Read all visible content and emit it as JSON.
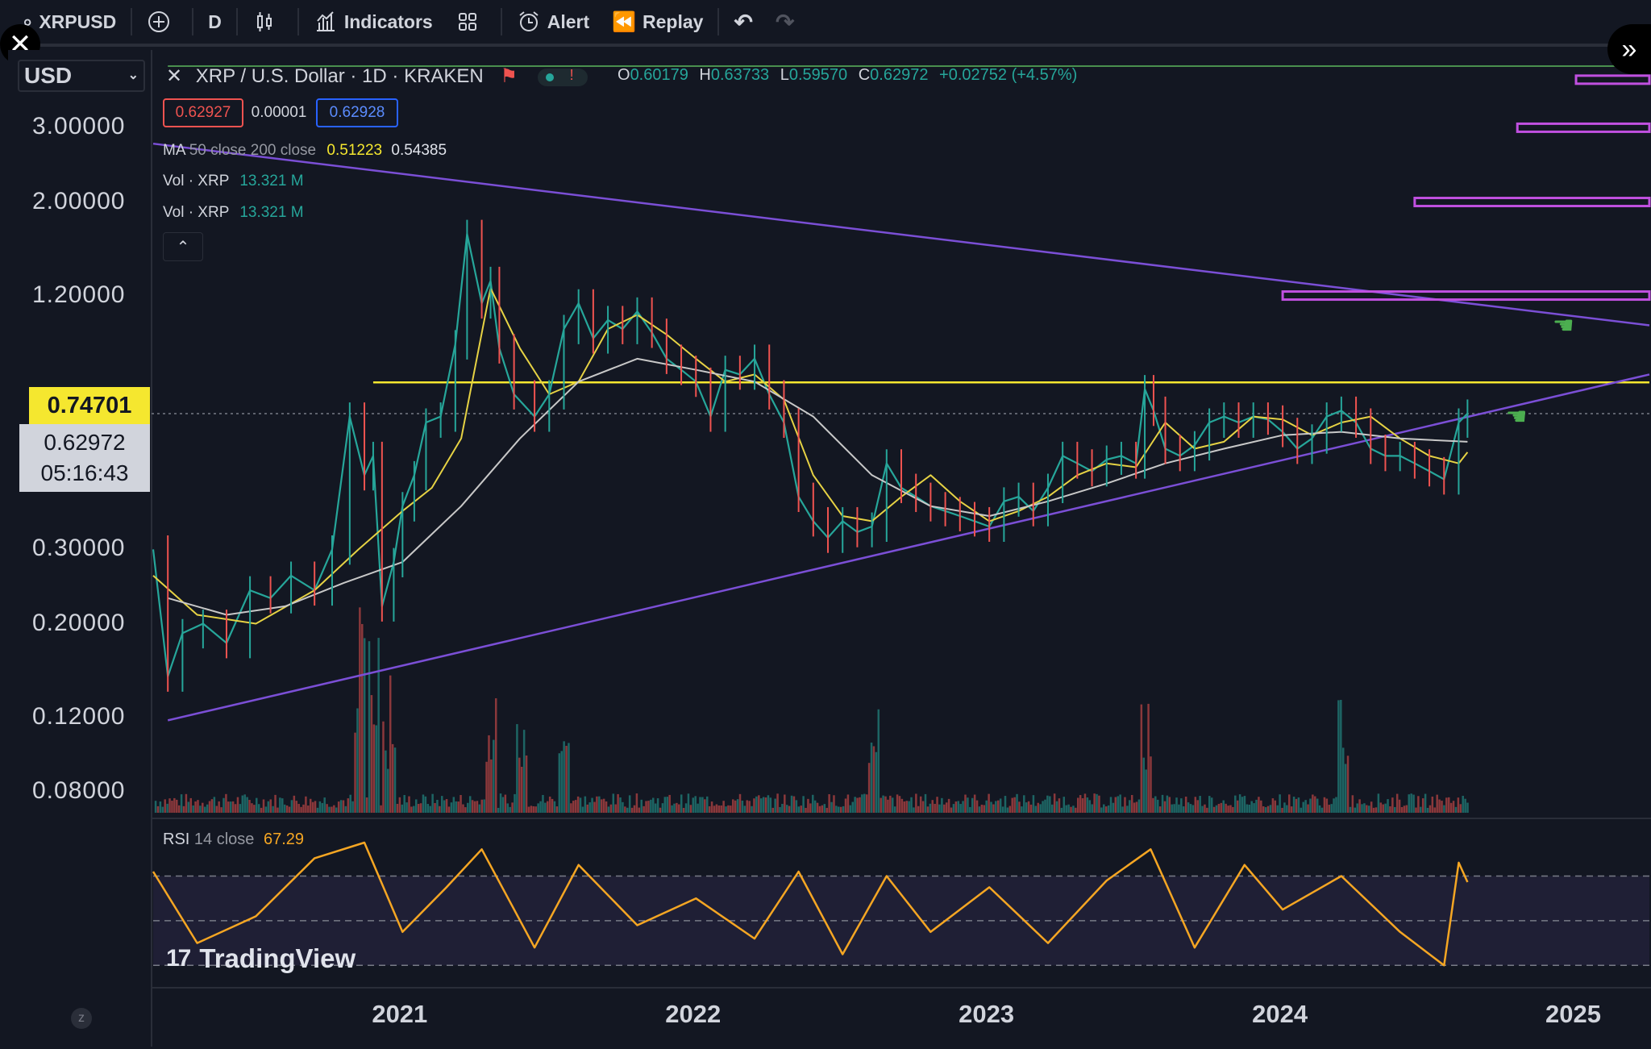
{
  "toolbar": {
    "symbol": "XRPUSD",
    "interval": "D",
    "indicators_label": "Indicators",
    "alert_label": "Alert",
    "replay_label": "Replay"
  },
  "header": {
    "currency": "USD",
    "title": "XRP / U.S. Dollar · 1D · KRAKEN",
    "open_label": "O",
    "open": "0.60179",
    "high_label": "H",
    "high": "0.63733",
    "low_label": "L",
    "low": "0.59570",
    "close_label": "C",
    "close": "0.62972",
    "change": "+0.02752 (+4.57%)",
    "bid": "0.62927",
    "spread": "0.00001",
    "ask": "0.62928"
  },
  "indicators": {
    "ma_label": "MA",
    "ma_params": "50 close 200 close",
    "ma50": "0.51223",
    "ma200": "0.54385",
    "vol1_label": "Vol",
    "vol1_sym": "· XRP",
    "vol1": "13.321 M",
    "vol2_label": "Vol",
    "vol2_sym": "· XRP",
    "vol2": "13.321 M",
    "rsi_label": "RSI",
    "rsi_params": "14 close",
    "rsi_value": "67.29"
  },
  "price_labels": {
    "level": "0.74701",
    "current": "0.62972",
    "countdown": "05:16:43"
  },
  "watermark": "TradingView",
  "colors": {
    "background": "#131722",
    "ma50": "#e6d244",
    "ma200": "#c8c8c8",
    "trendline": "#7b4fd6",
    "level_line": "#f5e72f",
    "rsi": "#f5a623",
    "up": "#26a69a",
    "down": "#ef5350"
  },
  "chart_data": {
    "type": "line",
    "title": "XRP / U.S. Dollar · 1D · KRAKEN",
    "y_scale": "log",
    "y_ticks": [
      "3.00000",
      "2.00000",
      "1.20000",
      "0.30000",
      "0.20000",
      "0.12000",
      "0.08000"
    ],
    "x_ticks": [
      "2021",
      "2022",
      "2023",
      "2024",
      "2025"
    ],
    "ylim": [
      0.07,
      4.2
    ],
    "xlim": [
      2020.15,
      2025.25
    ],
    "horizontal_level": 0.74701,
    "series": [
      {
        "name": "XRP close",
        "x": [
          2020.15,
          2020.2,
          2020.25,
          2020.32,
          2020.4,
          2020.48,
          2020.55,
          2020.62,
          2020.7,
          2020.76,
          2020.82,
          2020.87,
          2020.9,
          2020.93,
          2020.97,
          2021.0,
          2021.04,
          2021.08,
          2021.13,
          2021.18,
          2021.22,
          2021.27,
          2021.3,
          2021.33,
          2021.38,
          2021.45,
          2021.5,
          2021.55,
          2021.6,
          2021.65,
          2021.7,
          2021.75,
          2021.8,
          2021.85,
          2021.9,
          2021.95,
          2022.0,
          2022.05,
          2022.1,
          2022.15,
          2022.2,
          2022.25,
          2022.3,
          2022.35,
          2022.4,
          2022.45,
          2022.5,
          2022.55,
          2022.6,
          2022.65,
          2022.7,
          2022.75,
          2022.8,
          2022.85,
          2022.9,
          2022.95,
          2023.0,
          2023.05,
          2023.1,
          2023.15,
          2023.2,
          2023.25,
          2023.3,
          2023.35,
          2023.4,
          2023.45,
          2023.5,
          2023.53,
          2023.56,
          2023.6,
          2023.65,
          2023.7,
          2023.75,
          2023.8,
          2023.85,
          2023.9,
          2023.95,
          2024.0,
          2024.05,
          2024.1,
          2024.15,
          2024.2,
          2024.25,
          2024.3,
          2024.35,
          2024.4,
          2024.45,
          2024.5,
          2024.55,
          2024.6,
          2024.63
        ],
        "y": [
          0.3,
          0.15,
          0.19,
          0.2,
          0.18,
          0.24,
          0.23,
          0.26,
          0.24,
          0.3,
          0.62,
          0.45,
          0.5,
          0.22,
          0.28,
          0.38,
          0.45,
          0.6,
          0.62,
          0.92,
          1.68,
          1.15,
          1.3,
          0.9,
          0.7,
          0.62,
          0.7,
          1.0,
          1.15,
          0.95,
          1.05,
          1.0,
          1.1,
          0.98,
          0.85,
          0.8,
          0.75,
          0.62,
          0.8,
          0.78,
          0.85,
          0.7,
          0.6,
          0.4,
          0.35,
          0.32,
          0.35,
          0.33,
          0.34,
          0.48,
          0.42,
          0.4,
          0.38,
          0.37,
          0.36,
          0.35,
          0.34,
          0.39,
          0.4,
          0.37,
          0.42,
          0.5,
          0.48,
          0.46,
          0.49,
          0.5,
          0.48,
          0.72,
          0.64,
          0.52,
          0.5,
          0.53,
          0.6,
          0.62,
          0.6,
          0.62,
          0.61,
          0.57,
          0.52,
          0.55,
          0.62,
          0.64,
          0.6,
          0.52,
          0.5,
          0.5,
          0.48,
          0.46,
          0.44,
          0.6,
          0.63
        ]
      },
      {
        "name": "MA 50",
        "x": [
          2020.15,
          2020.3,
          2020.5,
          2020.7,
          2020.85,
          2021.0,
          2021.1,
          2021.2,
          2021.3,
          2021.4,
          2021.5,
          2021.6,
          2021.7,
          2021.8,
          2021.9,
          2022.0,
          2022.1,
          2022.2,
          2022.3,
          2022.4,
          2022.5,
          2022.6,
          2022.7,
          2022.8,
          2022.9,
          2023.0,
          2023.1,
          2023.2,
          2023.3,
          2023.4,
          2023.5,
          2023.6,
          2023.7,
          2023.8,
          2023.9,
          2024.0,
          2024.1,
          2024.2,
          2024.3,
          2024.4,
          2024.5,
          2024.6,
          2024.63
        ],
        "y": [
          0.26,
          0.21,
          0.2,
          0.24,
          0.3,
          0.37,
          0.42,
          0.55,
          1.25,
          0.9,
          0.7,
          0.75,
          1.0,
          1.08,
          0.97,
          0.85,
          0.75,
          0.78,
          0.68,
          0.45,
          0.36,
          0.35,
          0.4,
          0.45,
          0.39,
          0.35,
          0.37,
          0.4,
          0.45,
          0.48,
          0.47,
          0.6,
          0.52,
          0.54,
          0.62,
          0.61,
          0.56,
          0.6,
          0.62,
          0.55,
          0.5,
          0.48,
          0.51
        ]
      },
      {
        "name": "MA 200",
        "x": [
          2020.2,
          2020.4,
          2020.6,
          2020.8,
          2021.0,
          2021.2,
          2021.4,
          2021.6,
          2021.8,
          2022.0,
          2022.2,
          2022.4,
          2022.6,
          2022.8,
          2023.0,
          2023.2,
          2023.4,
          2023.6,
          2023.8,
          2024.0,
          2024.2,
          2024.4,
          2024.63
        ],
        "y": [
          0.23,
          0.21,
          0.22,
          0.25,
          0.28,
          0.38,
          0.55,
          0.75,
          0.85,
          0.8,
          0.75,
          0.62,
          0.45,
          0.38,
          0.36,
          0.39,
          0.43,
          0.48,
          0.52,
          0.56,
          0.57,
          0.55,
          0.54
        ]
      }
    ],
    "rsi": {
      "name": "RSI 14 close",
      "x": [
        2020.15,
        2020.3,
        2020.5,
        2020.7,
        2020.87,
        2021.0,
        2021.15,
        2021.27,
        2021.45,
        2021.6,
        2021.8,
        2022.0,
        2022.2,
        2022.35,
        2022.5,
        2022.65,
        2022.8,
        2023.0,
        2023.2,
        2023.4,
        2023.55,
        2023.7,
        2023.87,
        2024.0,
        2024.2,
        2024.4,
        2024.55,
        2024.6,
        2024.63
      ],
      "y": [
        72,
        40,
        52,
        78,
        85,
        45,
        65,
        82,
        38,
        75,
        48,
        60,
        42,
        72,
        35,
        70,
        45,
        65,
        40,
        68,
        82,
        38,
        75,
        55,
        70,
        45,
        30,
        76,
        67.29
      ]
    }
  }
}
